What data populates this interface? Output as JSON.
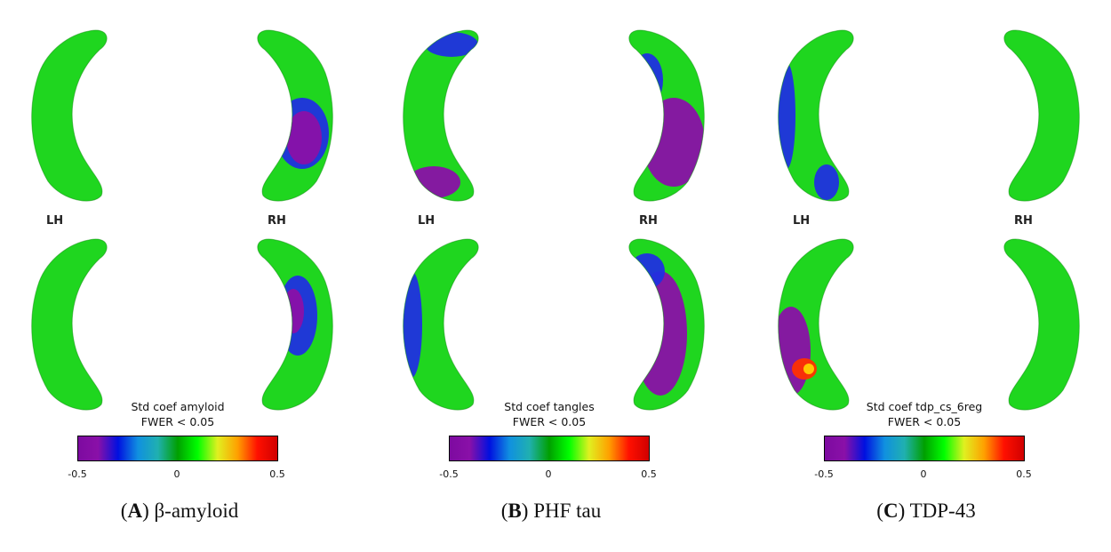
{
  "colorbar_colors": [
    "#7d0aa0",
    "#8a10a8",
    "#0010e0",
    "#1090e0",
    "#20b0b0",
    "#00a000",
    "#00ff00",
    "#e0f020",
    "#ffa000",
    "#ff1000",
    "#d00000"
  ],
  "surface_color": "#1fd61f",
  "panels": [
    {
      "letter": "A",
      "caption": "β-amyloid",
      "cb_title": "Std coef amyloid",
      "cb_sub": "FWER < 0.05",
      "lh": "LH",
      "rh": "RH",
      "ticks": [
        "-0.5",
        "0",
        "0.5"
      ]
    },
    {
      "letter": "B",
      "caption": "PHF tau",
      "cb_title": "Std coef tangles",
      "cb_sub": "FWER < 0.05",
      "lh": "LH",
      "rh": "RH",
      "ticks": [
        "-0.5",
        "0",
        "0.5"
      ]
    },
    {
      "letter": "C",
      "caption": "TDP-43",
      "cb_title": "Std coef tdp_cs_6reg",
      "cb_sub": "FWER < 0.05",
      "lh": "LH",
      "rh": "RH",
      "ticks": [
        "-0.5",
        "0",
        "0.5"
      ]
    }
  ]
}
